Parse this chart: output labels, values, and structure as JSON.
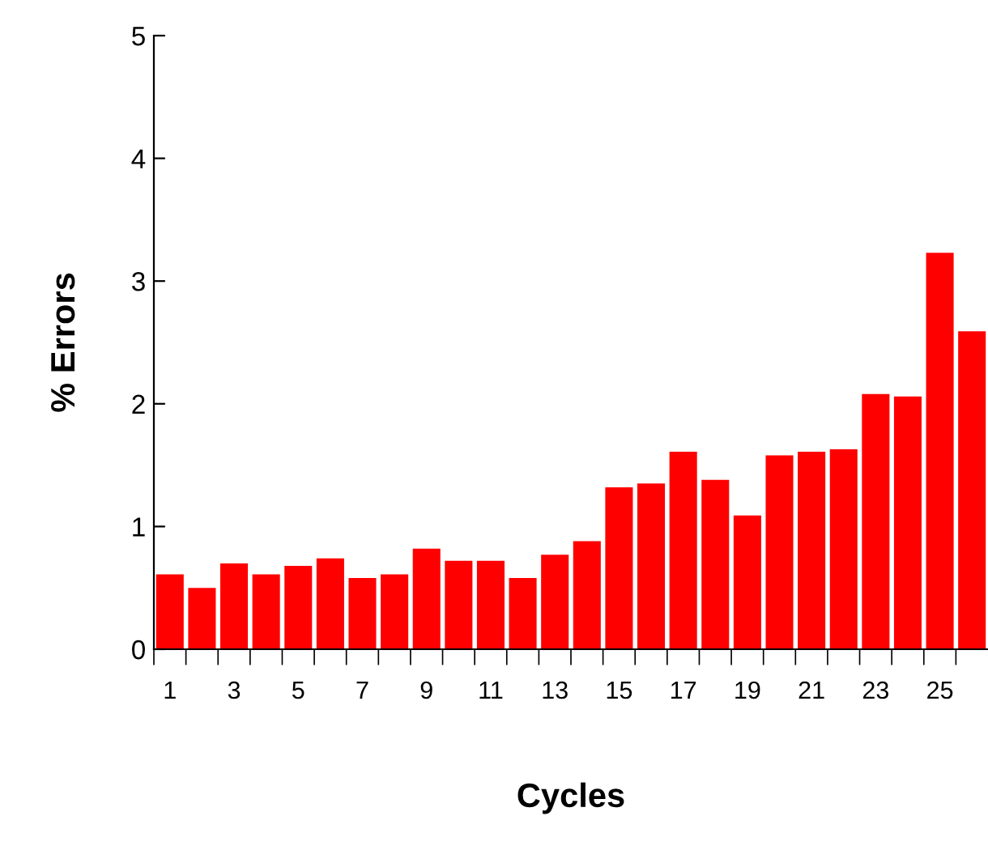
{
  "chart_data": {
    "type": "bar",
    "xlabel": "Cycles",
    "ylabel": "% Errors",
    "categories": [
      "1",
      null,
      "3",
      null,
      "5",
      null,
      "7",
      null,
      "9",
      null,
      "11",
      null,
      "13",
      null,
      "15",
      null,
      "17",
      null,
      "19",
      null,
      "21",
      null,
      "23",
      null,
      "25",
      null
    ],
    "values": [
      0.61,
      0.5,
      0.7,
      0.61,
      0.68,
      0.74,
      0.58,
      0.61,
      0.82,
      0.72,
      0.72,
      0.58,
      0.77,
      0.88,
      1.32,
      1.35,
      1.61,
      1.38,
      1.09,
      1.58,
      1.61,
      1.63,
      2.08,
      2.06,
      3.23,
      2.59
    ],
    "color": "#ff0000",
    "ylim": [
      0,
      5
    ],
    "yticks": [
      0,
      1,
      2,
      3,
      4,
      5
    ],
    "grid": false
  }
}
